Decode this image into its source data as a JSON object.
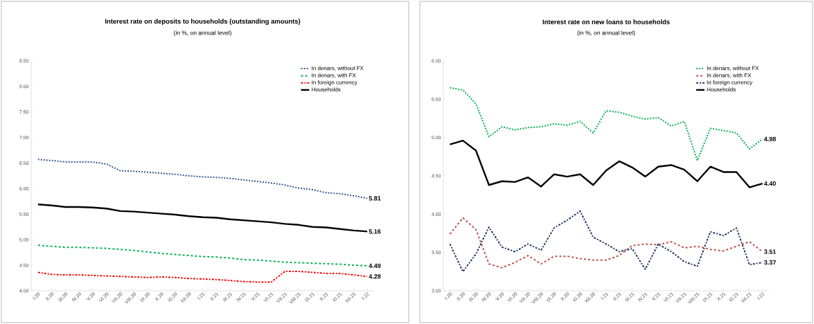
{
  "chart_data": [
    {
      "type": "line",
      "title": "Interest rate on deposits to households (outstanding amounts)",
      "subtitle": "(in %, on annual level)",
      "categories": [
        "I.20",
        "II.20",
        "III.20",
        "IV.20",
        "V.20",
        "VI.20",
        "VII.20",
        "VIII.20",
        "IX.20",
        "X.20",
        "XI.20",
        "XII.20",
        "I.21",
        "II.21",
        "III.21",
        "IV.21",
        "V.21",
        "VI.21",
        "VII.21",
        "VIII.21",
        "IX.21",
        "X.21",
        "XI.21",
        "XII.21",
        "I.22"
      ],
      "ylim": [
        4.0,
        8.5
      ],
      "yticks": [
        {
          "value": 4.0,
          "label": "4.00"
        },
        {
          "value": 4.5,
          "label": "4.50"
        },
        {
          "value": 5.0,
          "label": "5.00"
        },
        {
          "value": 5.5,
          "label": "5.50"
        },
        {
          "value": 6.0,
          "label": "6.00"
        },
        {
          "value": 6.5,
          "label": "6.50"
        },
        {
          "value": 7.0,
          "label": "7.00"
        },
        {
          "value": 7.5,
          "label": "7.50"
        },
        {
          "value": 8.0,
          "label": "8.00"
        },
        {
          "value": 8.5,
          "label": "8.50"
        }
      ],
      "legend": "top right",
      "series": [
        {
          "name": "In denars, without FX",
          "color": "#2f5597",
          "line_style": "dotted",
          "values": [
            6.57,
            6.55,
            6.52,
            6.52,
            6.52,
            6.48,
            6.35,
            6.34,
            6.32,
            6.3,
            6.28,
            6.25,
            6.23,
            6.22,
            6.2,
            6.17,
            6.14,
            6.11,
            6.07,
            6.01,
            5.98,
            5.92,
            5.9,
            5.86,
            5.81
          ],
          "value_labels": [
            null,
            null,
            null,
            null,
            null,
            null,
            null,
            null,
            null,
            null,
            null,
            null,
            null,
            null,
            null,
            null,
            null,
            null,
            null,
            null,
            null,
            null,
            null,
            null,
            "5.81"
          ]
        },
        {
          "name": "In denars, with FX",
          "color": "#00b050",
          "line_style": "dashed",
          "values": [
            4.89,
            4.87,
            4.85,
            4.85,
            4.84,
            4.83,
            4.81,
            4.79,
            4.76,
            4.73,
            4.71,
            4.69,
            4.67,
            4.66,
            4.64,
            4.61,
            4.6,
            4.58,
            4.56,
            4.55,
            4.54,
            4.53,
            4.52,
            4.5,
            4.49
          ],
          "value_labels": [
            null,
            null,
            null,
            null,
            null,
            null,
            null,
            null,
            null,
            null,
            null,
            null,
            null,
            null,
            null,
            null,
            null,
            null,
            null,
            null,
            null,
            null,
            null,
            null,
            "4.49"
          ]
        },
        {
          "name": "In foreign currency",
          "color": "#ff0000",
          "line_style": "dashdot",
          "values": [
            4.36,
            4.32,
            4.31,
            4.31,
            4.3,
            4.29,
            4.28,
            4.27,
            4.26,
            4.27,
            4.26,
            4.24,
            4.23,
            4.22,
            4.2,
            4.18,
            4.17,
            4.17,
            4.38,
            4.38,
            4.36,
            4.34,
            4.34,
            4.31,
            4.28
          ],
          "value_labels": [
            null,
            null,
            null,
            null,
            null,
            null,
            null,
            null,
            null,
            null,
            null,
            null,
            null,
            null,
            null,
            null,
            null,
            null,
            null,
            null,
            null,
            null,
            null,
            null,
            "4.28"
          ]
        },
        {
          "name": "Households",
          "color": "#000000",
          "line_style": "solid",
          "values": [
            5.69,
            5.67,
            5.64,
            5.64,
            5.63,
            5.61,
            5.56,
            5.55,
            5.53,
            5.51,
            5.49,
            5.46,
            5.44,
            5.43,
            5.4,
            5.38,
            5.36,
            5.34,
            5.31,
            5.29,
            5.25,
            5.24,
            5.21,
            5.18,
            5.16
          ],
          "value_labels": [
            null,
            null,
            null,
            null,
            null,
            null,
            null,
            null,
            null,
            null,
            null,
            null,
            null,
            null,
            null,
            null,
            null,
            null,
            null,
            null,
            null,
            null,
            null,
            null,
            "5.16"
          ]
        }
      ]
    },
    {
      "type": "line",
      "title": "Interest rate on new loans to households",
      "subtitle": "(in %, on annual level)",
      "categories": [
        "I.20",
        "II.20",
        "III.20",
        "IV.20",
        "V.20",
        "VI.20",
        "VII.20",
        "VIII.20",
        "IX.20",
        "X.20",
        "XI.20",
        "XII.20",
        "I.21",
        "II.21",
        "III.21",
        "IV.21",
        "V.21",
        "VI.21",
        "VII.21",
        "VIII.21",
        "IX.21",
        "X.21",
        "XI.21",
        "XII.21",
        "I.22"
      ],
      "ylim": [
        3.0,
        6.0
      ],
      "yticks": [
        {
          "value": 3.0,
          "label": "3.00"
        },
        {
          "value": 3.5,
          "label": "3.50"
        },
        {
          "value": 4.0,
          "label": "4.00"
        },
        {
          "value": 4.5,
          "label": "4.50"
        },
        {
          "value": 5.0,
          "label": "5.00"
        },
        {
          "value": 5.5,
          "label": "5.50"
        },
        {
          "value": 6.0,
          "label": "6.00"
        }
      ],
      "legend": "top right",
      "series": [
        {
          "name": "In denars, without FX",
          "color": "#00b050",
          "line_style": "dotted",
          "values": [
            5.65,
            5.62,
            5.44,
            5.01,
            5.14,
            5.1,
            5.13,
            5.14,
            5.18,
            5.16,
            5.21,
            5.06,
            5.35,
            5.33,
            5.28,
            5.24,
            5.26,
            5.15,
            5.21,
            4.7,
            5.12,
            5.09,
            5.06,
            4.85,
            4.98
          ],
          "value_labels": [
            null,
            null,
            null,
            null,
            null,
            null,
            null,
            null,
            null,
            null,
            null,
            null,
            null,
            null,
            null,
            null,
            null,
            null,
            null,
            null,
            null,
            null,
            null,
            null,
            "4.98"
          ]
        },
        {
          "name": "In denars, with FX",
          "color": "#c0504d",
          "line_style": "dashed",
          "values": [
            3.74,
            3.95,
            3.8,
            3.35,
            3.3,
            3.37,
            3.46,
            3.35,
            3.45,
            3.45,
            3.42,
            3.4,
            3.4,
            3.46,
            3.59,
            3.61,
            3.6,
            3.64,
            3.56,
            3.58,
            3.54,
            3.52,
            3.58,
            3.64,
            3.51
          ],
          "value_labels": [
            null,
            null,
            null,
            null,
            null,
            null,
            null,
            null,
            null,
            null,
            null,
            null,
            null,
            null,
            null,
            null,
            null,
            null,
            null,
            null,
            null,
            null,
            null,
            null,
            "3.51"
          ]
        },
        {
          "name": "In foreign currency",
          "color": "#1f3864",
          "line_style": "dashdot",
          "values": [
            3.61,
            3.25,
            3.48,
            3.83,
            3.57,
            3.51,
            3.61,
            3.53,
            3.82,
            3.92,
            4.04,
            3.7,
            3.61,
            3.51,
            3.55,
            3.28,
            3.61,
            3.51,
            3.38,
            3.32,
            3.77,
            3.72,
            3.82,
            3.34,
            3.37
          ],
          "value_labels": [
            null,
            null,
            null,
            null,
            null,
            null,
            null,
            null,
            null,
            null,
            null,
            null,
            null,
            null,
            null,
            null,
            null,
            null,
            null,
            null,
            null,
            null,
            null,
            null,
            "3.37"
          ]
        },
        {
          "name": "Households",
          "color": "#000000",
          "line_style": "solid",
          "values": [
            4.91,
            4.96,
            4.83,
            4.38,
            4.43,
            4.42,
            4.48,
            4.36,
            4.52,
            4.49,
            4.52,
            4.38,
            4.57,
            4.69,
            4.61,
            4.49,
            4.62,
            4.64,
            4.58,
            4.43,
            4.62,
            4.55,
            4.55,
            4.35,
            4.4
          ],
          "value_labels": [
            null,
            null,
            null,
            null,
            null,
            null,
            null,
            null,
            null,
            null,
            null,
            null,
            null,
            null,
            null,
            null,
            null,
            null,
            null,
            null,
            null,
            null,
            null,
            null,
            "4.40"
          ]
        }
      ]
    }
  ]
}
